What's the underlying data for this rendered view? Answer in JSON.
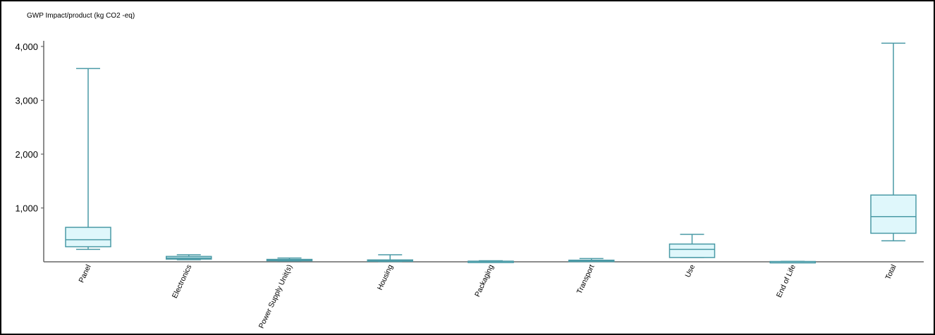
{
  "chart_data": {
    "type": "box",
    "ylabel": "GWP Impact/product (kg CO2 -eq)",
    "ylim": [
      0,
      4000
    ],
    "yticks": [
      {
        "value": 1000,
        "label": "1,000"
      },
      {
        "value": 2000,
        "label": "2,000"
      },
      {
        "value": 3000,
        "label": "3,000"
      },
      {
        "value": 4000,
        "label": "4,000"
      }
    ],
    "grid": false,
    "categories": [
      "Panel",
      "Electronics",
      "Power Supply Unit(s)",
      "Housing",
      "Packaging",
      "Transport",
      "Use",
      "End of Life",
      "Total"
    ],
    "boxes": [
      {
        "category": "Panel",
        "min": 230,
        "q1": 280,
        "median": 410,
        "q3": 640,
        "max": 3590
      },
      {
        "category": "Electronics",
        "min": 40,
        "q1": 50,
        "median": 70,
        "q3": 100,
        "max": 130
      },
      {
        "category": "Power Supply Unit(s)",
        "min": 15,
        "q1": 20,
        "median": 30,
        "q3": 45,
        "max": 70
      },
      {
        "category": "Housing",
        "min": 5,
        "q1": 10,
        "median": 20,
        "q3": 35,
        "max": 130
      },
      {
        "category": "Packaging",
        "min": 2,
        "q1": 4,
        "median": 7,
        "q3": 12,
        "max": 20
      },
      {
        "category": "Transport",
        "min": 5,
        "q1": 10,
        "median": 20,
        "q3": 30,
        "max": 60
      },
      {
        "category": "Use",
        "min": 80,
        "q1": 80,
        "median": 230,
        "q3": 330,
        "max": 510
      },
      {
        "category": "End of Life",
        "min": 1,
        "q1": 2,
        "median": 4,
        "q3": 6,
        "max": 8
      },
      {
        "category": "Total",
        "min": 390,
        "q1": 530,
        "median": 840,
        "q3": 1240,
        "max": 4060
      }
    ],
    "colors": {
      "box_fill": "#dff7fb",
      "box_stroke": "#4a9aa6",
      "axis": "#666666"
    }
  }
}
